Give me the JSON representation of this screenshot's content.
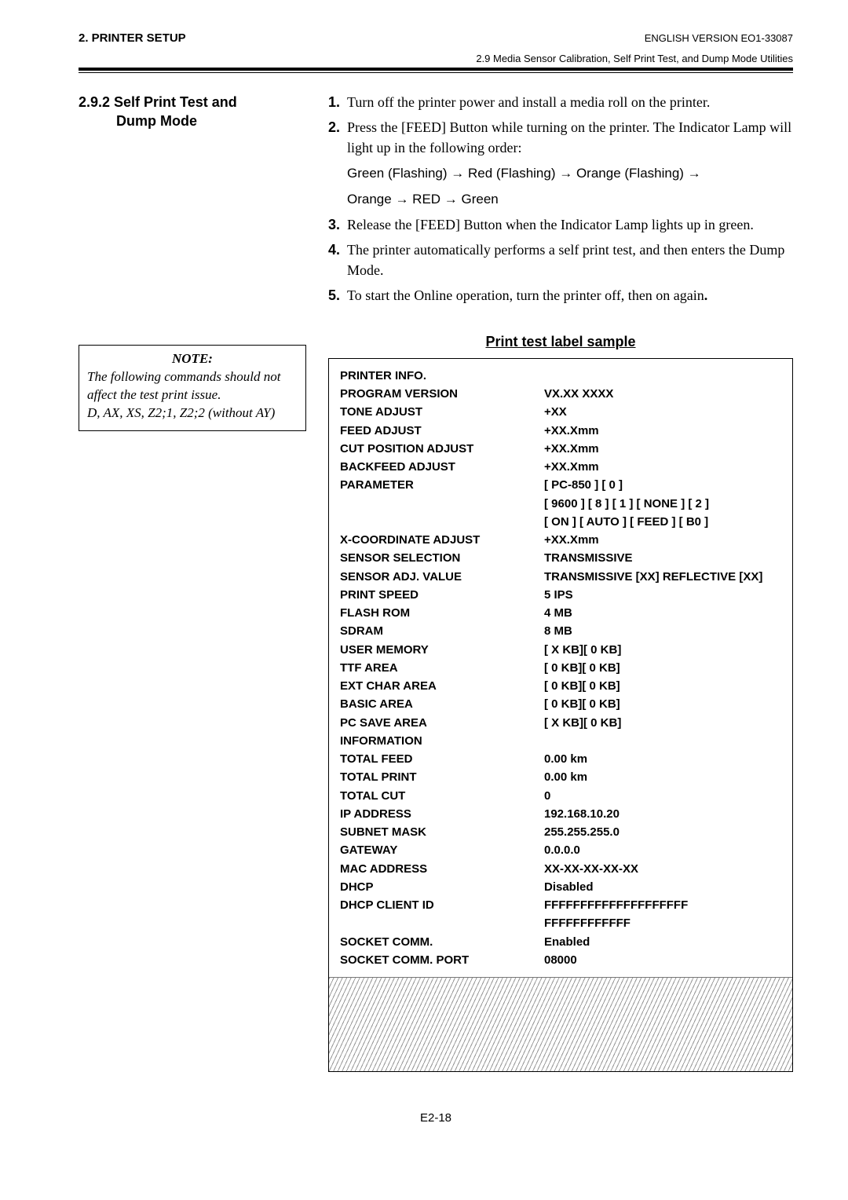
{
  "header": {
    "left": "2. PRINTER SETUP",
    "right": "ENGLISH VERSION EO1-33087",
    "sub": "2.9 Media Sensor Calibration, Self Print Test, and Dump Mode Utilities"
  },
  "section": {
    "number_line1": "2.9.2 Self Print Test and",
    "number_line2": "Dump Mode"
  },
  "steps": [
    {
      "n": "1.",
      "html": "Turn off the printer power and install a media roll on the printer."
    },
    {
      "n": "2.",
      "html": "Press the [FEED] Button while turning on the printer.  The Indicator Lamp will light up in the following order:"
    },
    {
      "n": "",
      "html": "<span class='sans'>Green (Flashing)  <span class='arrow'>&rarr;</span>  Red (Flashing)  <span class='arrow'>&rarr;</span>  Orange (Flashing)  <span class='arrow'>&rarr;</span></span>"
    },
    {
      "n": "",
      "html": "<span class='sans'>Orange  <span class='arrow'>&rarr;</span>  RED  <span class='arrow'>&rarr;</span>  Green</span>"
    },
    {
      "n": "3.",
      "html": "Release the [FEED] Button when the Indicator Lamp lights up in green."
    },
    {
      "n": "4.",
      "html": "The printer automatically performs a self print test, and then enters the Dump Mode."
    },
    {
      "n": "5.",
      "html": "To start the Online operation, turn the printer off, then on again<b>.</b>"
    }
  ],
  "note": {
    "title": "NOTE:",
    "body": "The following commands should not affect the test print issue.<br>D, AX, XS, Z2;1, Z2;2 (without AY)"
  },
  "sample_title": "Print test label sample",
  "sample_rows": [
    {
      "k": "PRINTER INFO.",
      "v": ""
    },
    {
      "k": "PROGRAM VERSION",
      "v": "VX.XX   XXXX"
    },
    {
      "k": "TONE ADJUST",
      "v": "+XX"
    },
    {
      "k": "FEED ADJUST",
      "v": "+XX.Xmm"
    },
    {
      "k": "CUT POSITION ADJUST",
      "v": "+XX.Xmm"
    },
    {
      "k": "BACKFEED ADJUST",
      "v": "+XX.Xmm"
    },
    {
      "k": "PARAMETER",
      "v": "[ PC-850 ] [ 0 ]"
    },
    {
      "k": "",
      "v": "[ 9600 ] [ 8 ] [ 1 ] [ NONE ] [ 2 ]"
    },
    {
      "k": "",
      "v": "[ ON ] [ AUTO ] [ FEED ] [ B0 ]"
    },
    {
      "k": "X-COORDINATE ADJUST",
      "v": "+XX.Xmm"
    },
    {
      "k": "SENSOR SELECTION",
      "v": "TRANSMISSIVE"
    },
    {
      "k": "SENSOR ADJ. VALUE",
      "v": "TRANSMISSIVE [XX]  REFLECTIVE [XX]"
    },
    {
      "k": "PRINT SPEED",
      "v": "5 IPS"
    },
    {
      "k": "FLASH ROM",
      "v": "4 MB"
    },
    {
      "k": "SDRAM",
      "v": "8 MB"
    },
    {
      "k": "USER MEMORY",
      "v": "[ X KB][ 0 KB]"
    },
    {
      "k": "TTF AREA",
      "v": "[ 0 KB][ 0 KB]"
    },
    {
      "k": "EXT CHAR AREA",
      "v": "[ 0 KB][ 0 KB]"
    },
    {
      "k": "BASIC AREA",
      "v": "[ 0 KB][ 0 KB]"
    },
    {
      "k": "PC SAVE AREA",
      "v": "[ X KB][ 0 KB]"
    },
    {
      "k": "INFORMATION",
      "v": ""
    },
    {
      "k": "TOTAL FEED",
      "v": "0.00 km"
    },
    {
      "k": "TOTAL PRINT",
      "v": "0.00 km"
    },
    {
      "k": "TOTAL CUT",
      "v": "0"
    },
    {
      "k": "IP ADDRESS",
      "v": "192.168.10.20"
    },
    {
      "k": "SUBNET MASK",
      "v": "255.255.255.0"
    },
    {
      "k": "GATEWAY",
      "v": "0.0.0.0"
    },
    {
      "k": "MAC ADDRESS",
      "v": "XX-XX-XX-XX-XX"
    },
    {
      "k": "DHCP",
      "v": "Disabled"
    },
    {
      "k": "DHCP CLIENT ID",
      "v": "FFFFFFFFFFFFFFFFFFFF"
    },
    {
      "k": "",
      "v": "FFFFFFFFFFFF"
    },
    {
      "k": "SOCKET COMM.",
      "v": "Enabled"
    },
    {
      "k": "SOCKET COMM. PORT",
      "v": "08000"
    }
  ],
  "footer": "E2-18"
}
